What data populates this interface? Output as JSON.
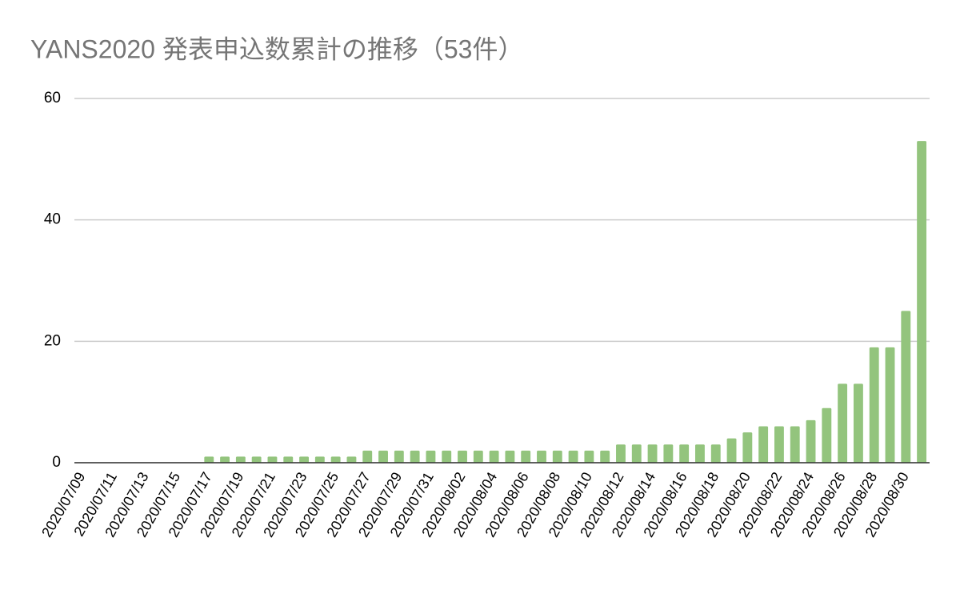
{
  "chart_data": {
    "type": "bar",
    "title": "YANS2020 発表申込数累計の推移（53件）",
    "categories": [
      "2020/07/09",
      null,
      "2020/07/11",
      null,
      "2020/07/13",
      null,
      "2020/07/15",
      null,
      "2020/07/17",
      null,
      "2020/07/19",
      null,
      "2020/07/21",
      null,
      "2020/07/23",
      null,
      "2020/07/25",
      null,
      "2020/07/27",
      null,
      "2020/07/29",
      null,
      "2020/07/31",
      null,
      "2020/08/02",
      null,
      "2020/08/04",
      null,
      "2020/08/06",
      null,
      "2020/08/08",
      null,
      "2020/08/10",
      null,
      "2020/08/12",
      null,
      "2020/08/14",
      null,
      "2020/08/16",
      null,
      "2020/08/18",
      null,
      "2020/08/20",
      null,
      "2020/08/22",
      null,
      "2020/08/24",
      null,
      "2020/08/26",
      null,
      "2020/08/28",
      null,
      "2020/08/30",
      null
    ],
    "values": [
      0,
      0,
      0,
      0,
      0,
      0,
      0,
      0,
      1,
      1,
      1,
      1,
      1,
      1,
      1,
      1,
      1,
      1,
      2,
      2,
      2,
      2,
      2,
      2,
      2,
      2,
      2,
      2,
      2,
      2,
      2,
      2,
      2,
      2,
      3,
      3,
      3,
      3,
      3,
      3,
      3,
      4,
      5,
      6,
      6,
      6,
      7,
      9,
      13,
      13,
      19,
      19,
      25,
      53
    ],
    "color": "#93c47d",
    "ylim": [
      0,
      60
    ],
    "yticks": [
      0,
      20,
      40,
      60
    ],
    "grid": true
  }
}
